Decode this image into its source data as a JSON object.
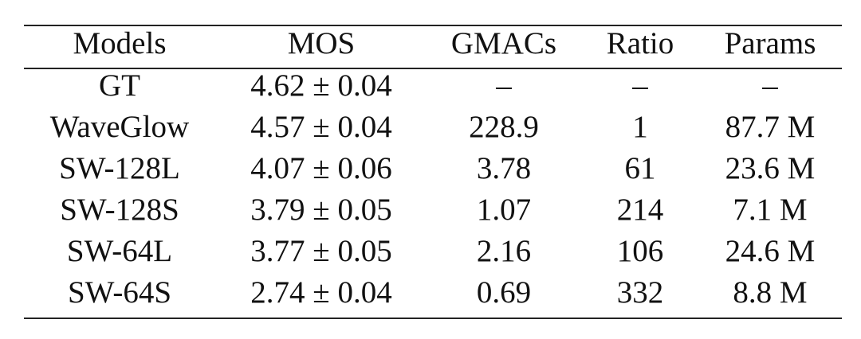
{
  "table": {
    "header": [
      "Models",
      "MOS",
      "GMACs",
      "Ratio",
      "Params"
    ],
    "rows": [
      [
        "GT",
        "4.62 ± 0.04",
        "–",
        "–",
        "–"
      ],
      [
        "WaveGlow",
        "4.57 ± 0.04",
        "228.9",
        "1",
        "87.7 M"
      ],
      [
        "SW-128L",
        "4.07 ± 0.06",
        "3.78",
        "61",
        "23.6 M"
      ],
      [
        "SW-128S",
        "3.79 ± 0.05",
        "1.07",
        "214",
        "7.1 M"
      ],
      [
        "SW-64L",
        "3.77 ± 0.05",
        "2.16",
        "106",
        "24.6 M"
      ],
      [
        "SW-64S",
        "2.74 ± 0.04",
        "0.69",
        "332",
        "8.8 M"
      ]
    ]
  }
}
